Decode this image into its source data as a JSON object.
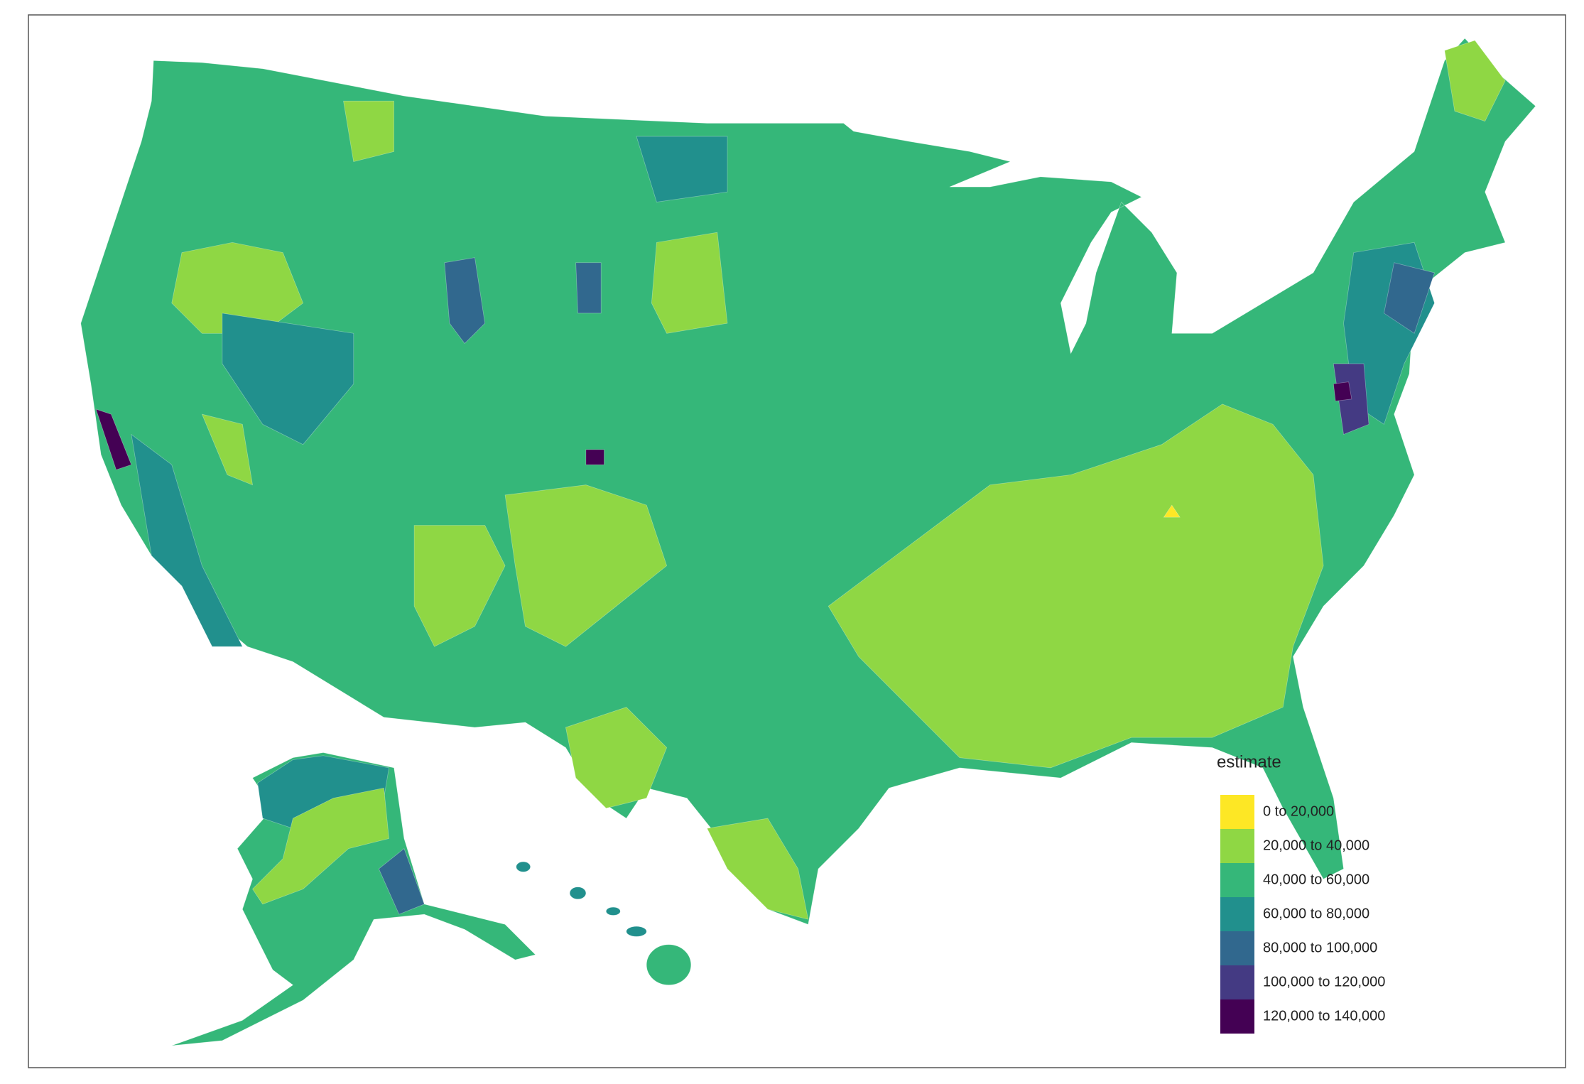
{
  "legend": {
    "title": "estimate",
    "items": [
      {
        "label": "0 to 20,000",
        "color": "#fde725"
      },
      {
        "label": "20,000 to 40,000",
        "color": "#8fd744"
      },
      {
        "label": "40,000 to 60,000",
        "color": "#35b779"
      },
      {
        "label": "60,000 to 80,000",
        "color": "#21908d"
      },
      {
        "label": "80,000 to 100,000",
        "color": "#31688e"
      },
      {
        "label": "100,000 to 120,000",
        "color": "#443a83"
      },
      {
        "label": "120,000 to 140,000",
        "color": "#440154"
      }
    ]
  }
}
